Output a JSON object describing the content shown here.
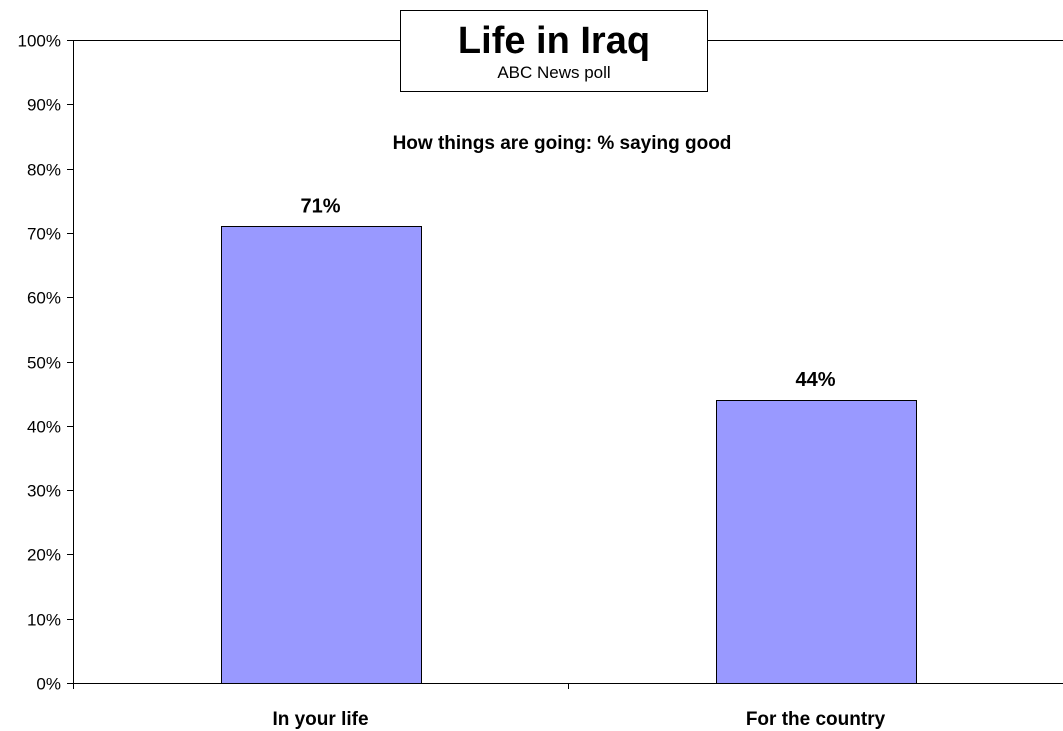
{
  "chart_data": {
    "type": "bar",
    "title": "Life in Iraq",
    "source": "ABC News poll",
    "subtitle": "How things are going: % saying good",
    "categories": [
      "In your life",
      "For the country"
    ],
    "values": [
      71,
      44
    ],
    "value_labels": [
      "71%",
      "44%"
    ],
    "y_ticks": [
      "0%",
      "10%",
      "20%",
      "30%",
      "40%",
      "50%",
      "60%",
      "70%",
      "80%",
      "90%",
      "100%"
    ],
    "ylim": [
      0,
      100
    ],
    "y_unit": "%",
    "grid": false,
    "bar_color": "#9999ff",
    "bar_border_color": "#000000"
  }
}
